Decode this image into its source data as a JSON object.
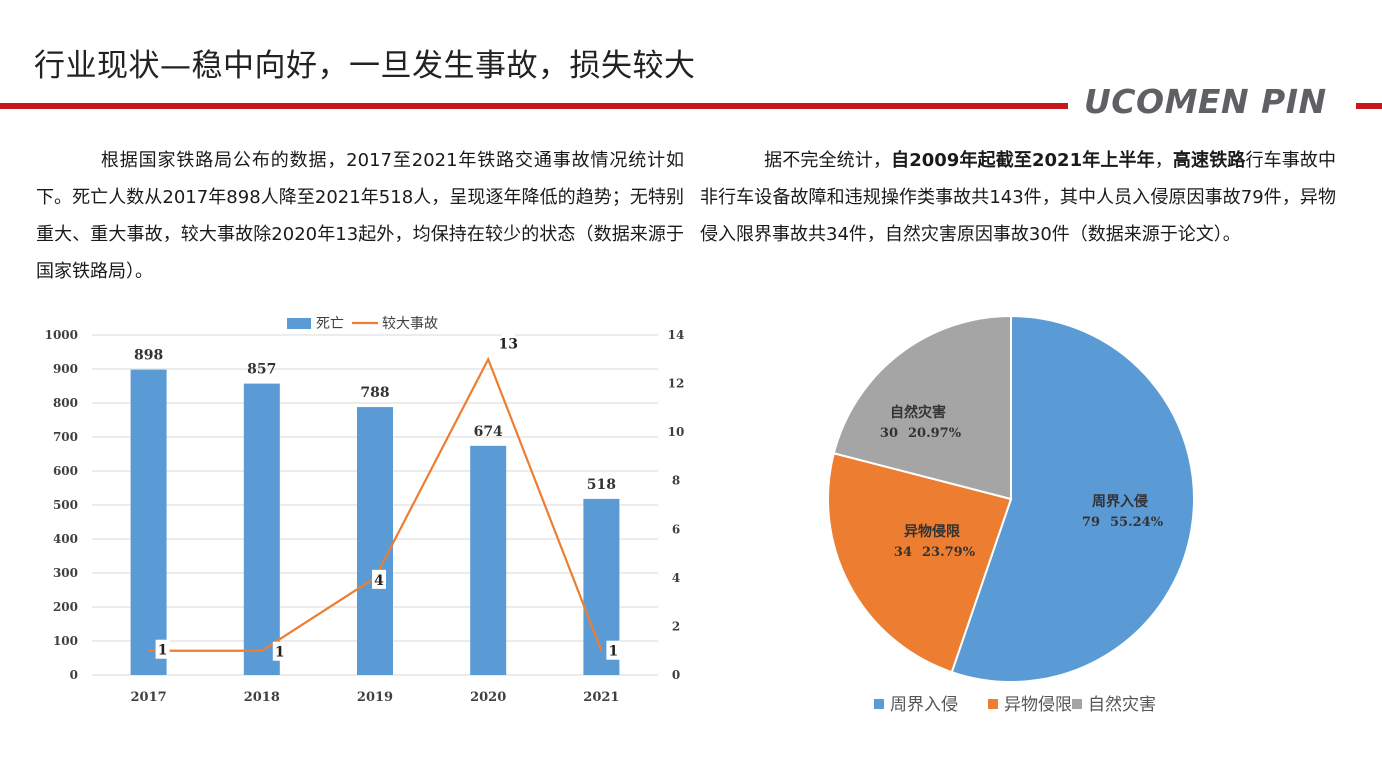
{
  "header": {
    "title": "行业现状—稳中向好，一旦发生事故，损失较大",
    "brand": "UCOMEN PIN",
    "accent_color": "#c8161d"
  },
  "left_text": {
    "text": "根据国家铁路局公布的数据，2017至2021年铁路交通事故情况统计如下。死亡人数从2017年898人降至2021年518人，呈现逐年降低的趋势；无特别重大、重大事故，较大事故除2020年13起外，均保持在较少的状态（数据来源于国家铁路局）。"
  },
  "right_text": {
    "part1": "据不完全统计，",
    "bold1": "自2009年起截至2021年上半年",
    "part2": "，",
    "bold2": "高速铁路",
    "part3": "行车事故中非行车设备故障和违规操作类事故共143件，其中人员入侵原因事故79件，异物侵入限界事故共34件，自然灾害原因事故30件（数据来源于论文）。"
  },
  "chart_data": [
    {
      "type": "bar",
      "categories": [
        "2017",
        "2018",
        "2019",
        "2020",
        "2021"
      ],
      "series": [
        {
          "name": "死亡",
          "type": "bar",
          "axis": "left",
          "values": [
            898,
            857,
            788,
            674,
            518
          ],
          "color": "#5b9bd5"
        },
        {
          "name": "较大事故",
          "type": "line",
          "axis": "right",
          "values": [
            1,
            1,
            4,
            13,
            1
          ],
          "color": "#ed7d31"
        }
      ],
      "ylim": [
        0,
        1000
      ],
      "yticks": [
        0,
        100,
        200,
        300,
        400,
        500,
        600,
        700,
        800,
        900,
        1000
      ],
      "y2lim": [
        0,
        14
      ],
      "y2ticks": [
        0,
        2,
        4,
        6,
        8,
        10,
        12,
        14
      ],
      "grid": true,
      "legend": "top"
    },
    {
      "type": "pie",
      "labels": [
        "周界入侵",
        "异物侵限",
        "自然灾害"
      ],
      "values": [
        79,
        34,
        30
      ],
      "percents": [
        "55.24%",
        "23.79%",
        "20.97%"
      ],
      "colors": [
        "#5b9bd5",
        "#ed7d31",
        "#a5a5a5"
      ],
      "legend": "bottom"
    }
  ]
}
